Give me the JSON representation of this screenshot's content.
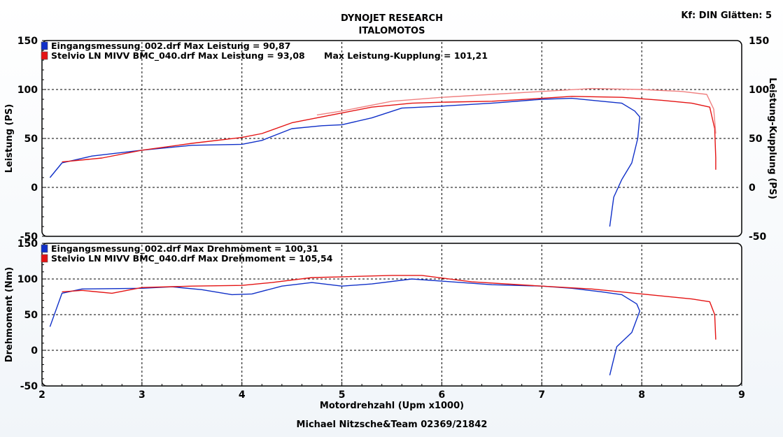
{
  "header": {
    "title": "DYNOJET RESEARCH",
    "subtitle": "ITALOMOTOS",
    "settings": "Kf: DIN  Glätten: 5"
  },
  "footer": "Michael Nitzsche&Team  02369/21842",
  "colors": {
    "run1": "#1030c8",
    "run2": "#e41414",
    "run2_light": "#f08080",
    "grid": "#000000"
  },
  "chart_data": [
    {
      "type": "line",
      "ylabel": "Leistung (PS)",
      "ylabel_right": "Leistung-Kupplung (PS)",
      "xlim": [
        2,
        9
      ],
      "ylim": [
        -50,
        150
      ],
      "yticks": [
        -50,
        0,
        50,
        100,
        150
      ],
      "grid": true,
      "legend": [
        {
          "label": "Eingangsmessung_002.drf Max Leistung = 90,87",
          "color": "#1030c8"
        },
        {
          "label": "Stelvio LN MIVV BMC_040.drf Max Leistung = 93,08",
          "color": "#e41414"
        }
      ],
      "annotation": "Max Leistung-Kupplung = 101,21",
      "series": [
        {
          "color": "#1030c8",
          "points": [
            [
              2.08,
              10
            ],
            [
              2.2,
              25
            ],
            [
              2.5,
              32
            ],
            [
              3.0,
              38
            ],
            [
              3.5,
              43
            ],
            [
              4.0,
              44
            ],
            [
              4.2,
              48
            ],
            [
              4.5,
              60
            ],
            [
              4.8,
              63
            ],
            [
              5.0,
              64
            ],
            [
              5.3,
              71
            ],
            [
              5.6,
              81
            ],
            [
              6.0,
              83
            ],
            [
              6.5,
              86
            ],
            [
              7.0,
              90
            ],
            [
              7.3,
              91
            ],
            [
              7.6,
              88
            ],
            [
              7.8,
              86
            ],
            [
              7.93,
              78
            ],
            [
              7.98,
              72
            ],
            [
              7.96,
              50
            ],
            [
              7.9,
              25
            ],
            [
              7.8,
              8
            ],
            [
              7.72,
              -10
            ],
            [
              7.68,
              -40
            ]
          ]
        },
        {
          "color": "#e41414",
          "points": [
            [
              2.2,
              26
            ],
            [
              2.6,
              30
            ],
            [
              3.0,
              38
            ],
            [
              3.5,
              45
            ],
            [
              4.0,
              51
            ],
            [
              4.2,
              55
            ],
            [
              4.5,
              66
            ],
            [
              5.0,
              76
            ],
            [
              5.3,
              82
            ],
            [
              5.7,
              86
            ],
            [
              6.0,
              87
            ],
            [
              6.5,
              88
            ],
            [
              7.0,
              91
            ],
            [
              7.3,
              93
            ],
            [
              7.8,
              92
            ],
            [
              8.2,
              89
            ],
            [
              8.5,
              86
            ],
            [
              8.68,
              82
            ],
            [
              8.73,
              60
            ],
            [
              8.74,
              30
            ],
            [
              8.74,
              18
            ]
          ]
        },
        {
          "color": "#f08080",
          "points": [
            [
              4.75,
              74
            ],
            [
              5.0,
              78
            ],
            [
              5.5,
              88
            ],
            [
              6.0,
              92
            ],
            [
              6.5,
              95
            ],
            [
              7.0,
              98
            ],
            [
              7.5,
              101
            ],
            [
              8.0,
              100
            ],
            [
              8.4,
              98
            ],
            [
              8.65,
              95
            ],
            [
              8.72,
              80
            ],
            [
              8.74,
              55
            ]
          ]
        }
      ]
    },
    {
      "type": "line",
      "xlabel": "Motordrehzahl (Upm x1000)",
      "ylabel": "Drehmoment (Nm)",
      "xlim": [
        2,
        9
      ],
      "ylim": [
        -50,
        150
      ],
      "xticks": [
        2,
        3,
        4,
        5,
        6,
        7,
        8,
        9
      ],
      "yticks": [
        -50,
        0,
        50,
        100,
        150
      ],
      "grid": true,
      "legend": [
        {
          "label": "Eingangsmessung_002.drf Max Drehmoment = 100,31",
          "color": "#1030c8"
        },
        {
          "label": "Stelvio LN MIVV BMC_040.drf Max Drehmoment = 105,54",
          "color": "#e41414"
        }
      ],
      "series": [
        {
          "color": "#1030c8",
          "points": [
            [
              2.08,
              33
            ],
            [
              2.2,
              80
            ],
            [
              2.4,
              86
            ],
            [
              3.0,
              87
            ],
            [
              3.3,
              89
            ],
            [
              3.6,
              85
            ],
            [
              3.9,
              78
            ],
            [
              4.1,
              79
            ],
            [
              4.4,
              90
            ],
            [
              4.7,
              95
            ],
            [
              5.0,
              90
            ],
            [
              5.3,
              93
            ],
            [
              5.7,
              100
            ],
            [
              6.0,
              97
            ],
            [
              6.5,
              92
            ],
            [
              7.0,
              90
            ],
            [
              7.3,
              87
            ],
            [
              7.6,
              82
            ],
            [
              7.8,
              78
            ],
            [
              7.95,
              65
            ],
            [
              7.98,
              55
            ],
            [
              7.9,
              25
            ],
            [
              7.75,
              5
            ],
            [
              7.68,
              -35
            ]
          ]
        },
        {
          "color": "#e41414",
          "points": [
            [
              2.2,
              82
            ],
            [
              2.4,
              84
            ],
            [
              2.7,
              80
            ],
            [
              3.0,
              88
            ],
            [
              3.5,
              90
            ],
            [
              4.0,
              91
            ],
            [
              4.3,
              95
            ],
            [
              4.7,
              102
            ],
            [
              5.0,
              103
            ],
            [
              5.5,
              105
            ],
            [
              5.8,
              105
            ],
            [
              6.3,
              96
            ],
            [
              7.0,
              90
            ],
            [
              7.5,
              86
            ],
            [
              8.0,
              79
            ],
            [
              8.5,
              72
            ],
            [
              8.68,
              68
            ],
            [
              8.73,
              50
            ],
            [
              8.74,
              15
            ]
          ]
        }
      ]
    }
  ]
}
